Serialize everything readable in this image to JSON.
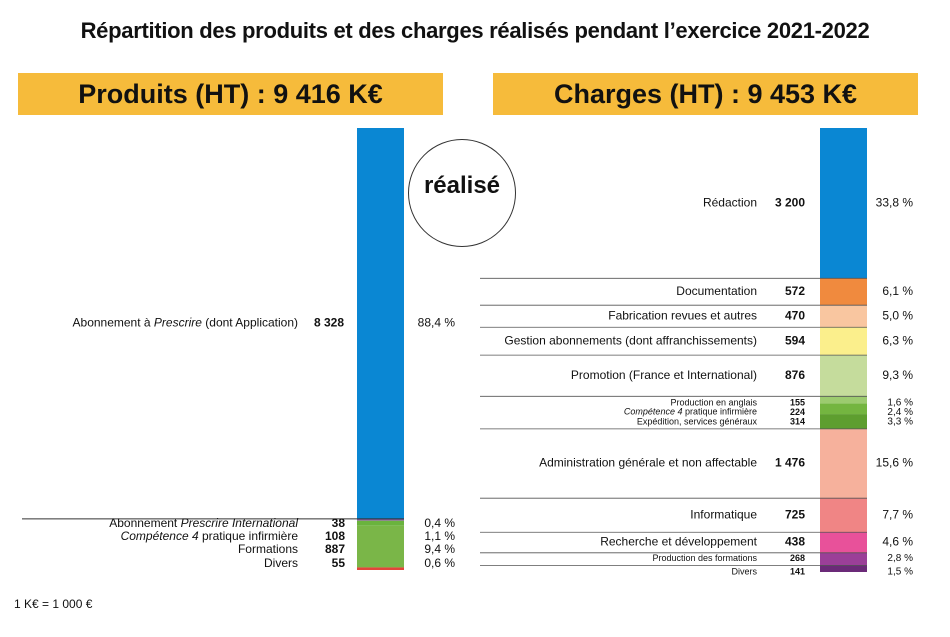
{
  "title": "Répartition des produits et des charges réalisés pendant l’exercice 2021-2022",
  "left_header": "Produits (HT) : 9 416 K€",
  "right_header": "Charges (HT) : 9 453 K€",
  "badge": "réalisé",
  "footnote": "1 K€ = 1 000 €",
  "chart_data": [
    {
      "type": "bar",
      "stacked": true,
      "title": "Produits (HT) : 9 416 K€",
      "total": 9416,
      "segments": [
        {
          "label": "Abonnement à Prescrire (dont Application)",
          "italic": "Prescrire",
          "value": 8328,
          "value_label": "8 328",
          "percent": "88,4 %",
          "color": "#0a87d3"
        },
        {
          "label": "Abonnement Prescrire International",
          "italic": "Prescrire International",
          "value": 38,
          "value_label": "38",
          "percent": "0,4 %",
          "color": "#8b5aa3"
        },
        {
          "label": "Compétence 4 pratique infirmière",
          "italic": "Compétence 4",
          "value": 108,
          "value_label": "108",
          "percent": "1,1 %",
          "color": "#6ab33e"
        },
        {
          "label": "Formations",
          "italic": "",
          "value": 887,
          "value_label": "887",
          "percent": "9,4 %",
          "color": "#7ab648"
        },
        {
          "label": "Divers",
          "italic": "",
          "value": 55,
          "value_label": "55",
          "percent": "0,6 %",
          "color": "#e2463a"
        }
      ]
    },
    {
      "type": "bar",
      "stacked": true,
      "title": "Charges (HT) : 9 453 K€",
      "total": 9453,
      "segments": [
        {
          "label": "Rédaction",
          "italic": "",
          "value": 3200,
          "value_label": "3 200",
          "percent": "33,8 %",
          "color": "#0a87d3"
        },
        {
          "label": "Documentation",
          "italic": "",
          "value": 572,
          "value_label": "572",
          "percent": "6,1 %",
          "color": "#f08a3e"
        },
        {
          "label": "Fabrication revues et autres",
          "italic": "",
          "value": 470,
          "value_label": "470",
          "percent": "5,0 %",
          "color": "#f9c6a0"
        },
        {
          "label": "Gestion abonnements (dont affranchissements)",
          "italic": "",
          "value": 594,
          "value_label": "594",
          "percent": "6,3 %",
          "color": "#fbef8c"
        },
        {
          "label": "Promotion (France et International)",
          "italic": "",
          "value": 876,
          "value_label": "876",
          "percent": "9,3 %",
          "color": "#c5dc9c"
        },
        {
          "label": "Production en anglais",
          "italic": "",
          "value": 155,
          "value_label": "155",
          "percent": "1,6 %",
          "color": "#9ccb6f"
        },
        {
          "label": "Compétence 4 pratique infirmière",
          "italic": "Compétence 4",
          "value": 224,
          "value_label": "224",
          "percent": "2,4 %",
          "color": "#74b540"
        },
        {
          "label": "Expédition, services généraux",
          "italic": "",
          "value": 314,
          "value_label": "314",
          "percent": "3,3 %",
          "color": "#5e9e2f"
        },
        {
          "label": "Administration générale et non affectable",
          "italic": "",
          "value": 1476,
          "value_label": "1 476",
          "percent": "15,6 %",
          "color": "#f6b19c"
        },
        {
          "label": "Informatique",
          "italic": "",
          "value": 725,
          "value_label": "725",
          "percent": "7,7 %",
          "color": "#f08585"
        },
        {
          "label": "Recherche et développement",
          "italic": "",
          "value": 438,
          "value_label": "438",
          "percent": "4,6 %",
          "color": "#e8519a"
        },
        {
          "label": "Production des formations",
          "italic": "",
          "value": 268,
          "value_label": "268",
          "percent": "2,8 %",
          "color": "#9b3f98"
        },
        {
          "label": "Divers",
          "italic": "",
          "value": 141,
          "value_label": "141",
          "percent": "1,5 %",
          "color": "#6b2a78"
        }
      ]
    }
  ]
}
